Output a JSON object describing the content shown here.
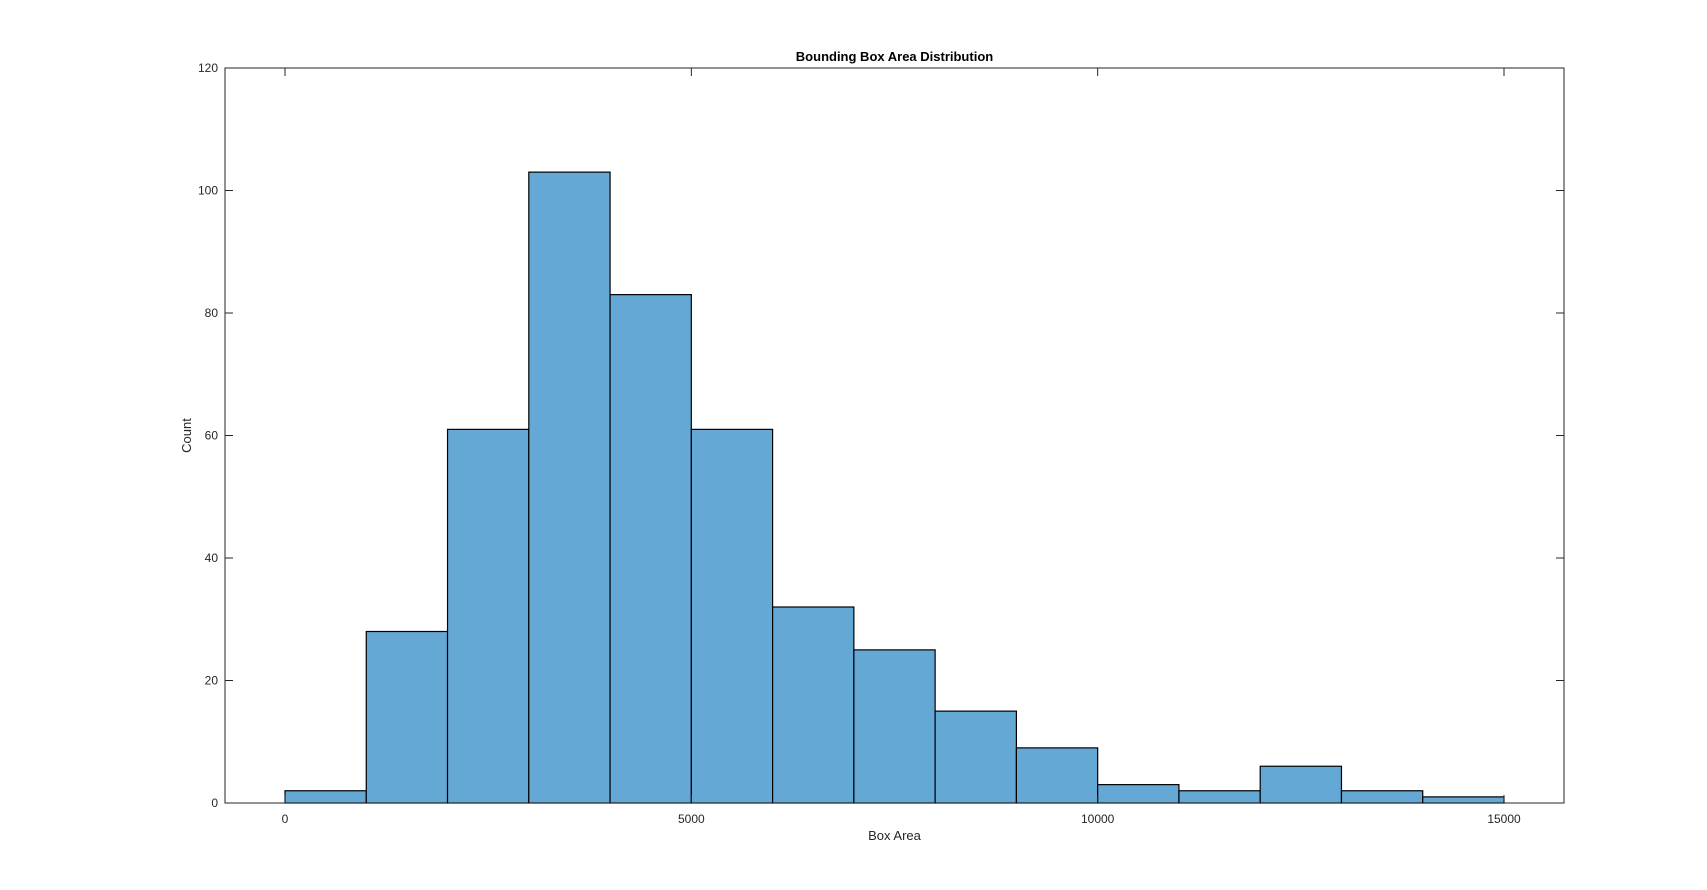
{
  "chart_data": {
    "type": "bar",
    "title": "Bounding Box Area Distribution",
    "xlabel": "Box Area",
    "ylabel": "Count",
    "xlim": [
      -1500,
      15000
    ],
    "ylim": [
      0,
      120
    ],
    "xticks": [
      0,
      5000,
      10000,
      15000
    ],
    "xtick_labels": [
      "0",
      "5000",
      "10000",
      "15000"
    ],
    "yticks": [
      0,
      20,
      40,
      60,
      80,
      100,
      120
    ],
    "ytick_labels": [
      "0",
      "20",
      "40",
      "60",
      "80",
      "100",
      "120"
    ],
    "bin_edges": [
      0,
      1000,
      2000,
      3000,
      4000,
      5000,
      6000,
      7000,
      8000,
      9000,
      10000,
      11000,
      12000,
      13000,
      14000,
      15000
    ],
    "values": [
      2,
      28,
      61,
      103,
      83,
      61,
      32,
      25,
      15,
      9,
      3,
      2,
      6,
      2,
      1
    ],
    "grid": false,
    "bar_color": "#64a8d6",
    "edge_color": "#000000",
    "axes_color": "#262626"
  }
}
